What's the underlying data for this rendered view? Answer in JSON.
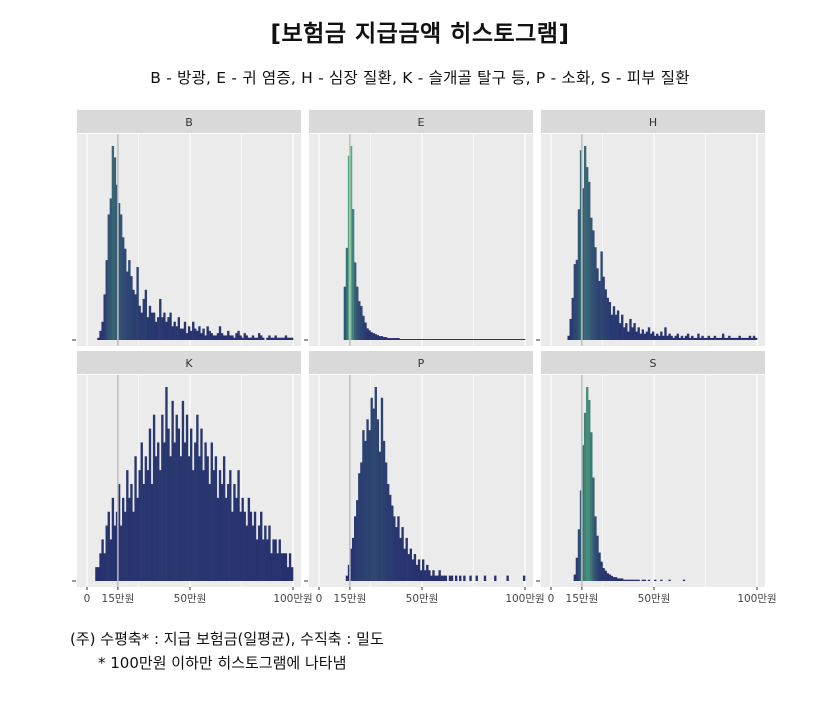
{
  "title": "[보험금 지급금액 히스토그램]",
  "subtitle": "B - 방광, E - 귀 염증, H - 심장 질환, K - 슬개골 탈구 등, P - 소화, S - 피부 질환",
  "notes": {
    "line1": "(주) 수평축* : 지급 보험금(일평균), 수직축 : 밀도",
    "line2": "* 100만원 이하만 히스토그램에 나타냄"
  },
  "colors": {
    "panel_bg": "#ebebeb",
    "strip_bg": "#d9d9d9",
    "gridline": "#ffffff",
    "ref_line": "#bdbdbd",
    "low_density": "#27306f",
    "high_density": "#4fae7c"
  },
  "chart_data": {
    "type": "histogram",
    "facet_layout": "2 rows x 3 columns",
    "x_ticks": [
      0,
      15,
      50,
      100
    ],
    "x_tick_labels": [
      "0",
      "15만원",
      "50만원",
      "100만원"
    ],
    "xlim": [
      0,
      100
    ],
    "reference_line_x": 15,
    "bin_width": 1,
    "fill": "gradient by density (navy low → green high)",
    "panels": [
      {
        "label": "B",
        "values": [
          0,
          0,
          0,
          0,
          0,
          1,
          4,
          8,
          20,
          35,
          55,
          62,
          85,
          80,
          68,
          60,
          55,
          45,
          40,
          30,
          35,
          28,
          22,
          20,
          32,
          15,
          12,
          18,
          22,
          10,
          15,
          12,
          12,
          8,
          10,
          18,
          10,
          12,
          8,
          10,
          12,
          6,
          8,
          6,
          10,
          5,
          5,
          8,
          3,
          6,
          4,
          8,
          5,
          4,
          6,
          3,
          5,
          2,
          6,
          4,
          3,
          2,
          2,
          3,
          6,
          3,
          2,
          2,
          4,
          2,
          2,
          1,
          3,
          4,
          2,
          1,
          3,
          2,
          1,
          1,
          2,
          1,
          1,
          3,
          2,
          1,
          0,
          1,
          2,
          1,
          1,
          2,
          1,
          1,
          1,
          1,
          2,
          1,
          1,
          1
        ]
      },
      {
        "label": "E",
        "values": [
          0,
          0,
          0,
          0,
          0,
          0,
          0,
          0,
          0,
          0,
          0,
          0,
          55,
          95,
          190,
          200,
          135,
          80,
          55,
          40,
          35,
          25,
          18,
          12,
          10,
          8,
          7,
          6,
          5,
          4,
          4,
          3,
          3,
          2,
          2,
          2,
          2,
          2,
          2,
          1,
          1,
          1,
          1,
          1,
          1,
          1,
          1,
          1,
          1,
          1,
          1,
          1,
          1,
          1,
          1,
          1,
          1,
          1,
          1,
          1,
          1,
          1,
          1,
          1,
          1,
          1,
          1,
          1,
          1,
          1,
          1,
          1,
          1,
          1,
          1,
          1,
          1,
          1,
          1,
          1,
          1,
          1,
          1,
          1,
          1,
          1,
          1,
          1,
          1,
          1,
          1,
          1,
          1,
          1,
          1,
          1,
          1,
          1,
          1,
          1
        ]
      },
      {
        "label": "H",
        "values": [
          0,
          0,
          0,
          0,
          0,
          0,
          0,
          0,
          2,
          10,
          20,
          36,
          38,
          62,
          90,
          72,
          92,
          82,
          75,
          58,
          52,
          44,
          34,
          28,
          42,
          30,
          24,
          20,
          18,
          12,
          16,
          12,
          14,
          8,
          12,
          6,
          8,
          4,
          10,
          6,
          8,
          4,
          6,
          3,
          5,
          3,
          4,
          6,
          3,
          4,
          2,
          3,
          2,
          4,
          2,
          6,
          2,
          3,
          2,
          1,
          2,
          3,
          1,
          2,
          1,
          2,
          3,
          1,
          2,
          1,
          1,
          3,
          1,
          2,
          1,
          1,
          2,
          1,
          1,
          2,
          1,
          1,
          1,
          3,
          1,
          1,
          2,
          1,
          1,
          1,
          1,
          2,
          1,
          1,
          1,
          1,
          2,
          1,
          2,
          1
        ]
      },
      {
        "label": "K",
        "values": [
          0,
          0,
          0,
          0,
          1,
          1,
          2,
          3,
          2,
          4,
          5,
          3,
          6,
          4,
          5,
          7,
          4,
          6,
          5,
          8,
          6,
          7,
          5,
          9,
          6,
          8,
          10,
          7,
          9,
          8,
          11,
          7,
          12,
          9,
          10,
          8,
          12,
          10,
          14,
          11,
          9,
          13,
          10,
          12,
          11,
          9,
          13,
          10,
          12,
          9,
          11,
          8,
          10,
          12,
          9,
          11,
          8,
          10,
          9,
          7,
          10,
          8,
          9,
          6,
          8,
          7,
          9,
          6,
          7,
          8,
          5,
          7,
          6,
          8,
          5,
          6,
          5,
          4,
          6,
          5,
          4,
          5,
          3,
          4,
          5,
          3,
          4,
          3,
          4,
          2,
          3,
          3,
          2,
          3,
          2,
          2,
          2,
          1,
          2,
          1
        ]
      },
      {
        "label": "P",
        "values": [
          0,
          0,
          0,
          0,
          0,
          0,
          0,
          0,
          0,
          0,
          0,
          0,
          0,
          1,
          3,
          6,
          8,
          12,
          15,
          20,
          22,
          28,
          26,
          30,
          28,
          34,
          32,
          36,
          30,
          24,
          34,
          26,
          22,
          18,
          16,
          14,
          12,
          10,
          12,
          8,
          10,
          6,
          8,
          5,
          6,
          4,
          5,
          3,
          4,
          2,
          4,
          2,
          3,
          2,
          1,
          2,
          1,
          1,
          2,
          1,
          1,
          1,
          0,
          1,
          1,
          0,
          1,
          0,
          1,
          0,
          1,
          0,
          0,
          1,
          0,
          0,
          1,
          0,
          0,
          0,
          1,
          0,
          0,
          0,
          0,
          1,
          0,
          0,
          0,
          0,
          0,
          1,
          0,
          0,
          0,
          0,
          0,
          0,
          0,
          1
        ]
      },
      {
        "label": "S",
        "values": [
          0,
          0,
          0,
          0,
          0,
          0,
          0,
          0,
          0,
          0,
          0,
          5,
          18,
          40,
          70,
          105,
          130,
          150,
          140,
          115,
          80,
          50,
          35,
          22,
          15,
          10,
          8,
          6,
          5,
          4,
          3,
          3,
          2,
          2,
          2,
          1,
          1,
          1,
          1,
          1,
          1,
          1,
          1,
          0,
          1,
          1,
          0,
          1,
          0,
          0,
          1,
          0,
          0,
          1,
          0,
          0,
          0,
          1,
          0,
          0,
          0,
          0,
          0,
          0,
          1,
          0,
          0,
          0,
          0,
          0,
          0,
          0,
          0,
          0,
          0,
          0,
          0,
          0,
          0,
          0,
          0,
          0,
          0,
          0,
          0,
          0,
          0,
          0,
          0,
          0,
          0,
          0,
          0,
          0,
          0,
          0,
          0,
          0,
          0,
          0
        ]
      }
    ]
  }
}
